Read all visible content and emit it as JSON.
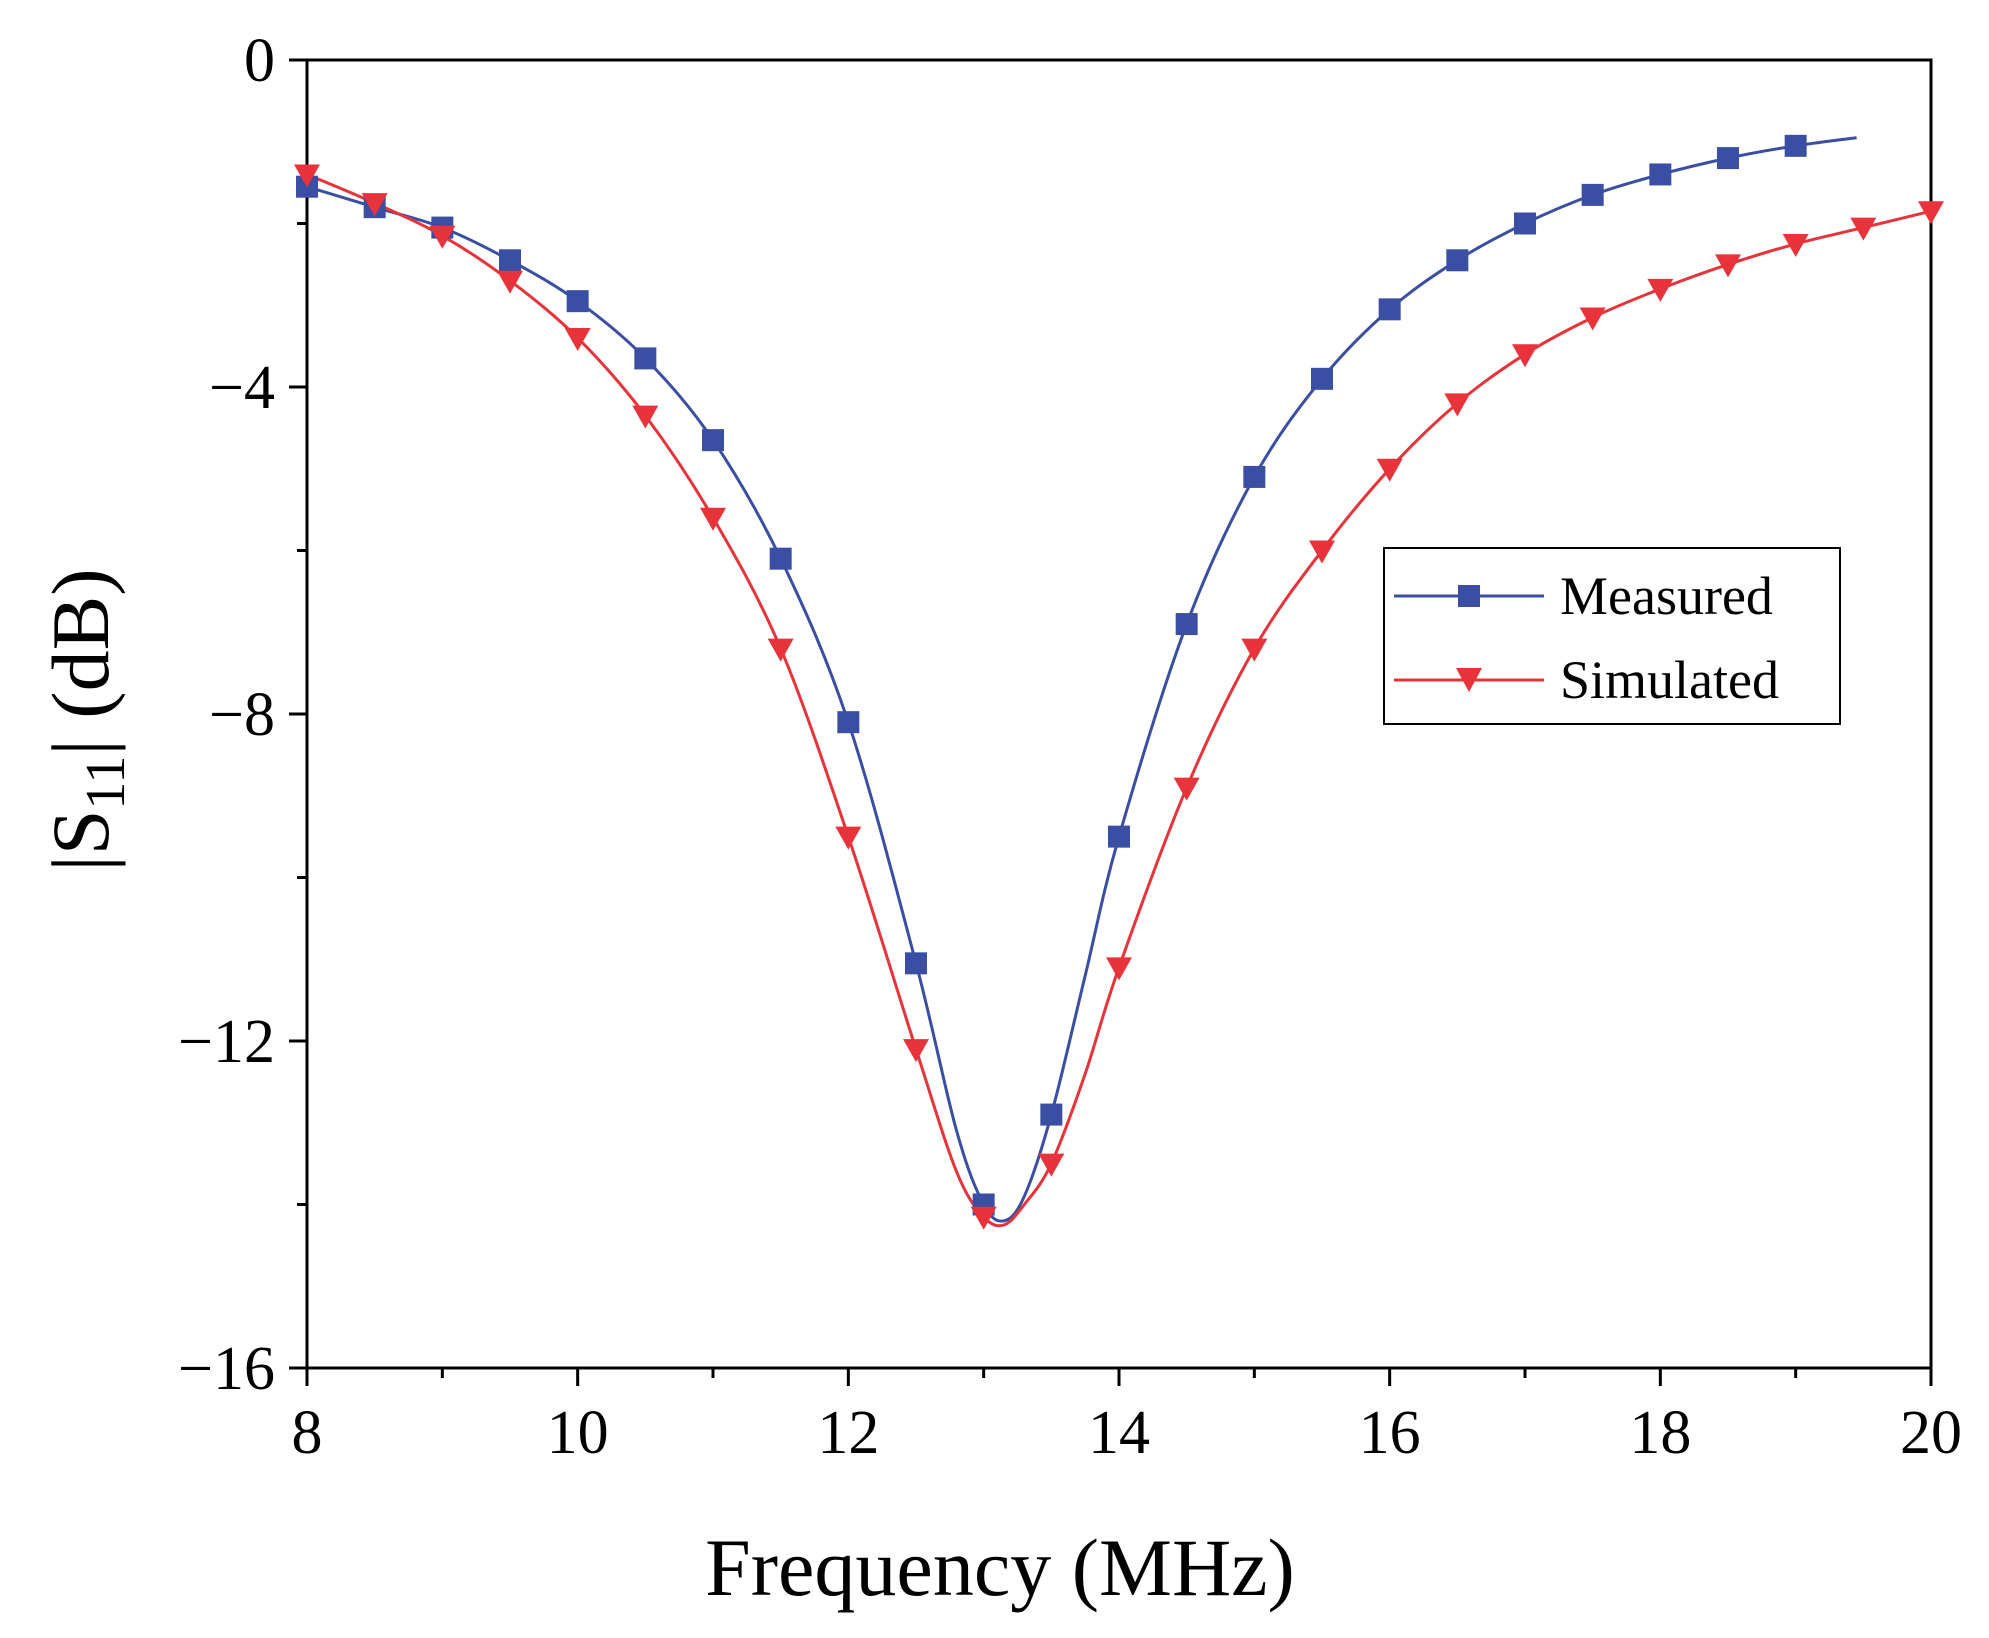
{
  "chart_data": {
    "type": "line",
    "title": "",
    "xlabel": "Frequency (MHz)",
    "ylabel_parts": {
      "prefix": "|S",
      "subscript": "11",
      "suffix": "| (dB)"
    },
    "xlim": [
      8,
      20
    ],
    "ylim": [
      -16,
      0
    ],
    "x_ticks": [
      8,
      10,
      12,
      14,
      16,
      18,
      20
    ],
    "y_ticks": [
      0,
      -4,
      -8,
      -12,
      -16
    ],
    "x_tick_labels": [
      "8",
      "10",
      "12",
      "14",
      "16",
      "18",
      "20"
    ],
    "y_tick_labels": [
      "0",
      "−4",
      "−8",
      "−12",
      "−16"
    ],
    "legend_position": "center-right",
    "series": [
      {
        "name": "Measured",
        "color": "#3a4fa3",
        "marker": "square",
        "marker_x": [
          8,
          8.5,
          9,
          9.5,
          10,
          10.5,
          11,
          11.5,
          12,
          12.5,
          13,
          13.5,
          14,
          14.5,
          15,
          15.5,
          16,
          16.5,
          17,
          17.5,
          18,
          18.5,
          19
        ],
        "marker_y": [
          -1.55,
          -1.8,
          -2.05,
          -2.45,
          -2.95,
          -3.65,
          -4.65,
          -6.1,
          -8.1,
          -11.05,
          -14.0,
          -12.9,
          -9.5,
          -6.9,
          -5.1,
          -3.9,
          -3.05,
          -2.45,
          -2.0,
          -1.65,
          -1.4,
          -1.2,
          -1.05
        ],
        "curve_x": [
          8,
          8.5,
          9,
          9.5,
          10,
          10.5,
          11,
          11.5,
          12,
          12.5,
          12.8,
          13,
          13.15,
          13.3,
          13.5,
          13.75,
          14,
          14.5,
          15,
          15.5,
          16,
          16.5,
          17,
          17.5,
          18,
          18.5,
          19,
          19.45
        ],
        "curve_y": [
          -1.55,
          -1.8,
          -2.05,
          -2.45,
          -2.95,
          -3.65,
          -4.65,
          -6.1,
          -8.1,
          -11.05,
          -13.1,
          -14.0,
          -14.2,
          -13.9,
          -12.9,
          -11.2,
          -9.5,
          -6.9,
          -5.1,
          -3.9,
          -3.05,
          -2.45,
          -2.0,
          -1.65,
          -1.4,
          -1.2,
          -1.05,
          -0.95
        ]
      },
      {
        "name": "Simulated",
        "color": "#e8333b",
        "marker": "triangle-down",
        "marker_x": [
          8,
          8.5,
          9,
          9.5,
          10,
          10.5,
          11,
          11.5,
          12,
          12.5,
          13,
          13.5,
          14,
          14.5,
          15,
          15.5,
          16,
          16.5,
          17,
          17.5,
          18,
          18.5,
          19,
          19.5,
          20
        ],
        "marker_y": [
          -1.4,
          -1.75,
          -2.15,
          -2.7,
          -3.4,
          -4.35,
          -5.6,
          -7.2,
          -9.5,
          -12.1,
          -14.15,
          -13.5,
          -11.1,
          -8.9,
          -7.2,
          -6.0,
          -5.0,
          -4.2,
          -3.6,
          -3.15,
          -2.8,
          -2.5,
          -2.25,
          -2.05,
          -1.85
        ],
        "curve_x": [
          8,
          8.5,
          9,
          9.5,
          10,
          10.5,
          11,
          11.5,
          12,
          12.5,
          12.8,
          13,
          13.15,
          13.3,
          13.5,
          13.75,
          14,
          14.5,
          15,
          15.5,
          16,
          16.5,
          17,
          17.5,
          18,
          18.5,
          19,
          19.5,
          20
        ],
        "curve_y": [
          -1.4,
          -1.75,
          -2.15,
          -2.7,
          -3.4,
          -4.35,
          -5.6,
          -7.2,
          -9.5,
          -12.1,
          -13.6,
          -14.15,
          -14.25,
          -14.0,
          -13.5,
          -12.4,
          -11.1,
          -8.9,
          -7.2,
          -6.0,
          -5.0,
          -4.2,
          -3.6,
          -3.15,
          -2.8,
          -2.5,
          -2.25,
          -2.05,
          -1.85
        ]
      }
    ]
  }
}
